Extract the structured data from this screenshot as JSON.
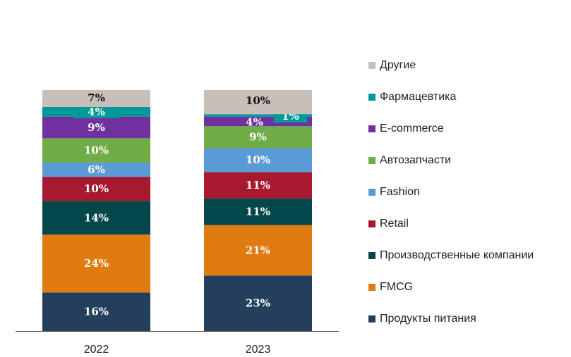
{
  "chart_data": {
    "type": "bar",
    "stacked": true,
    "normalized": true,
    "categories": [
      "2022",
      "2023"
    ],
    "series": [
      {
        "name": "Продукты питания",
        "color": "#243f5c",
        "values": [
          16,
          23
        ]
      },
      {
        "name": "FMCG",
        "color": "#e07b10",
        "values": [
          24,
          21
        ]
      },
      {
        "name": "Производственные компании",
        "color": "#03474b",
        "values": [
          14,
          11
        ]
      },
      {
        "name": "Retail",
        "color": "#a6192e",
        "values": [
          10,
          11
        ]
      },
      {
        "name": "Fashion",
        "color": "#5b9bd5",
        "values": [
          6,
          10
        ]
      },
      {
        "name": "Автозапчасти",
        "color": "#70ad47",
        "values": [
          10,
          9
        ]
      },
      {
        "name": "E-commerce",
        "color": "#7030a0",
        "values": [
          9,
          4
        ]
      },
      {
        "name": "Фармацевтика",
        "color": "#009999",
        "values": [
          4,
          1
        ]
      },
      {
        "name": "Другие",
        "color": "#c8c0b8",
        "values": [
          7,
          10
        ]
      }
    ],
    "value_suffix": "%",
    "legend_position": "right",
    "grid": false
  }
}
